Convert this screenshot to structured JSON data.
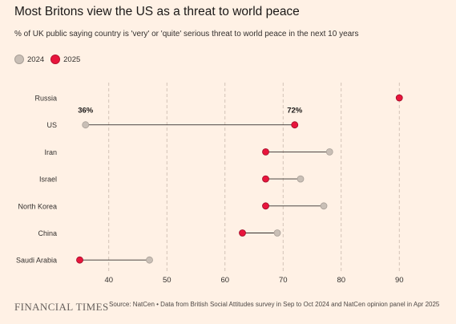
{
  "title": "Most Britons view the US as a threat to world peace",
  "subtitle": "% of UK public saying country is 'very' or 'quite' serious threat to world peace in the next 10 years",
  "legend": [
    {
      "label": "2024",
      "color": "#c9bfb6"
    },
    {
      "label": "2025",
      "color": "#e8153c"
    }
  ],
  "chart_data": {
    "type": "scatter",
    "subtype": "dumbbell",
    "categories": [
      "Russia",
      "US",
      "Iran",
      "Israel",
      "North Korea",
      "China",
      "Saudi Arabia"
    ],
    "series": [
      {
        "name": "2024",
        "values": [
          null,
          36,
          78,
          73,
          77,
          69,
          47
        ]
      },
      {
        "name": "2025",
        "values": [
          90,
          72,
          67,
          67,
          67,
          63,
          35
        ]
      }
    ],
    "annotations": [
      {
        "category": "US",
        "series": "2024",
        "text": "36%"
      },
      {
        "category": "US",
        "series": "2025",
        "text": "72%"
      }
    ],
    "xticks": [
      40,
      50,
      60,
      70,
      80,
      90
    ],
    "xlim": [
      33,
      93
    ],
    "grid": "vertical dashed",
    "legend_position": "top-left"
  },
  "colors": {
    "background": "#fff1e5",
    "y2024": "#c9bfb6",
    "y2025": "#e8153c",
    "grid": "#c8b9ab",
    "arrow": "#33302e"
  },
  "footer": {
    "logo": "FINANCIAL TIMES",
    "source": "Source: NatCen • Data from British Social Attitudes survey in Sep to Oct 2024 and NatCen opinion panel in Apr 2025"
  }
}
